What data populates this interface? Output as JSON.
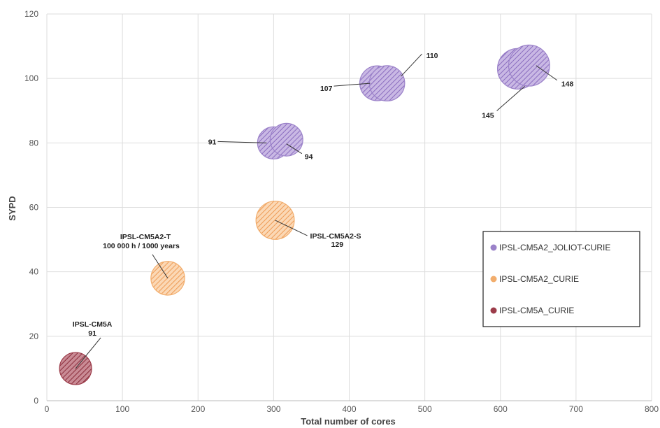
{
  "chart_data": {
    "type": "bubble",
    "xlabel": "Total number of cores",
    "ylabel": "SYPD",
    "xlim": [
      0,
      800
    ],
    "ylim": [
      0,
      120
    ],
    "xticks": [
      0,
      100,
      200,
      300,
      400,
      500,
      600,
      700,
      800
    ],
    "yticks": [
      0,
      20,
      40,
      60,
      80,
      100,
      120
    ],
    "grid": true,
    "legend_position": "right",
    "series": [
      {
        "name": "IPSL-CM5A2_JOLIOT-CURIE",
        "color": "#9b82c9",
        "points": [
          {
            "x": 300,
            "y": 80,
            "size": 91,
            "label": "91"
          },
          {
            "x": 317,
            "y": 81,
            "size": 94,
            "label": "94"
          },
          {
            "x": 437,
            "y": 98.5,
            "size": 107,
            "label": "107"
          },
          {
            "x": 450,
            "y": 98.5,
            "size": 110,
            "label": "110"
          },
          {
            "x": 623,
            "y": 103,
            "size": 145,
            "label": "145"
          },
          {
            "x": 638,
            "y": 104,
            "size": 148,
            "label": "148"
          }
        ]
      },
      {
        "name": "IPSL-CM5A2_CURIE",
        "color": "#f2ad6c",
        "points": [
          {
            "x": 160,
            "y": 38,
            "size": 100,
            "label": "IPSL-CM5A2-T",
            "label2": "100 000 h / 1000 years"
          },
          {
            "x": 302,
            "y": 56,
            "size": 129,
            "label": "IPSL-CM5A2-S",
            "label2": "129"
          }
        ]
      },
      {
        "name": "IPSL-CM5A_CURIE",
        "color": "#9c3c4a",
        "points": [
          {
            "x": 38,
            "y": 10,
            "size": 91,
            "label": "IPSL-CM5A",
            "label2": "91"
          }
        ]
      }
    ]
  }
}
